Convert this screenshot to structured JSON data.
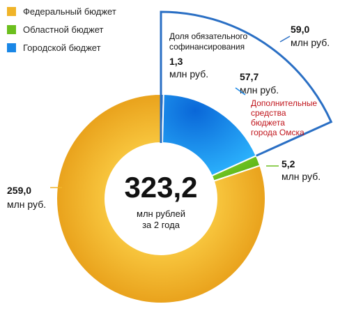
{
  "chart_data": {
    "type": "pie",
    "total": {
      "value": "323,2",
      "caption_line1": "млн рублей",
      "caption_line2": "за 2 года"
    },
    "series": [
      {
        "name": "Федеральный бюджет",
        "value": 259.0,
        "value_label": "259,0",
        "unit": "млн руб.",
        "color": "#f0b429"
      },
      {
        "name": "Областной бюджет",
        "value": 5.2,
        "value_label": "5,2",
        "unit": "млн руб.",
        "color": "#6cbf1e"
      },
      {
        "name": "Городской бюджет",
        "value": 59.0,
        "value_label": "59,0",
        "unit": "млн руб.",
        "color": "#1a87e6",
        "parts": [
          {
            "label": "Доля обязательного софинансирования",
            "label_line1": "Доля обязательного",
            "label_line2": "софинансирования",
            "value": 1.3,
            "value_label": "1,3",
            "unit": "млн руб."
          },
          {
            "label": "Дополнительные средства бюджета города Омска",
            "label_lines": [
              "Дополнительные",
              "средства",
              "бюджета",
              "города Омска"
            ],
            "value": 57.7,
            "value_label": "57,7",
            "unit": "млн руб."
          }
        ]
      }
    ],
    "annotation_color": "#c0141b",
    "highlight_outline_color": "#2a6fc4"
  }
}
